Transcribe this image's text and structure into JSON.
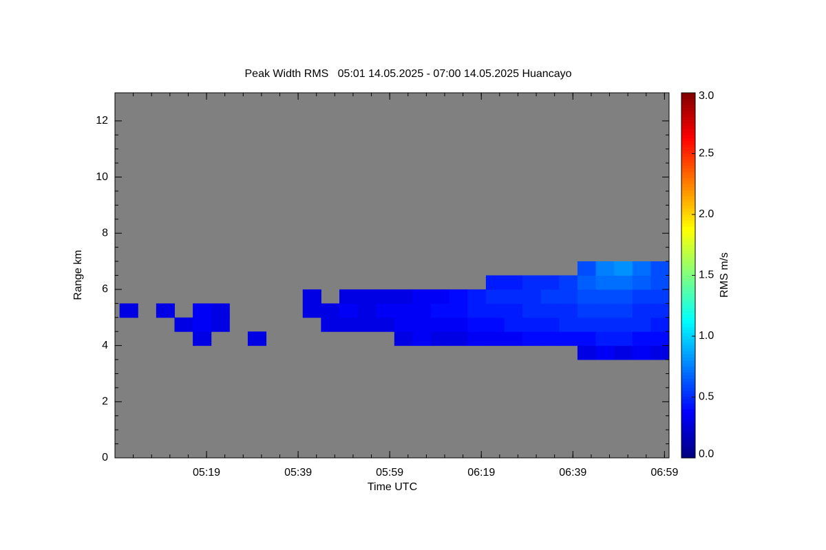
{
  "chart_data": {
    "type": "heatmap",
    "title": "Peak Width RMS   05:01 14.05.2025 - 07:00 14.05.2025 Huancayo",
    "xlabel": "Time UTC",
    "ylabel": "Range km",
    "colorbar_label": "RMS m/s",
    "colormap": "jet",
    "background": "#808080",
    "xlim": [
      "04:59",
      "07:00"
    ],
    "xticks": [
      "05:19",
      "05:39",
      "05:59",
      "06:19",
      "06:39",
      "06:59"
    ],
    "ylim": [
      0,
      13
    ],
    "yticks": [
      0,
      2,
      4,
      6,
      8,
      10,
      12
    ],
    "zlim": [
      0,
      3
    ],
    "zticks": [
      {
        "value": 0,
        "label": "0.0"
      },
      {
        "value": 0.5,
        "label": "0.5"
      },
      {
        "value": 1,
        "label": "1.0"
      },
      {
        "value": 1.5,
        "label": "1.5"
      },
      {
        "value": 2,
        "label": "2.0"
      },
      {
        "value": 2.5,
        "label": "2.5"
      },
      {
        "value": 3,
        "label": "3.0"
      }
    ],
    "xbins": [
      "05:00",
      "05:04",
      "05:08",
      "05:12",
      "05:16",
      "05:20",
      "05:24",
      "05:28",
      "05:32",
      "05:36",
      "05:40",
      "05:44",
      "05:48",
      "05:52",
      "05:56",
      "06:00",
      "06:04",
      "06:08",
      "06:12",
      "06:16",
      "06:20",
      "06:24",
      "06:28",
      "06:32",
      "06:36",
      "06:40",
      "06:44",
      "06:48",
      "06:52",
      "06:56",
      "07:00"
    ],
    "ybins": [
      3.5,
      4,
      4.5,
      5,
      5.5,
      6,
      6.5,
      7
    ],
    "z": [
      [
        null,
        null,
        null,
        null,
        null,
        null,
        null,
        null,
        null,
        null,
        null,
        null,
        null,
        null,
        null,
        null,
        null,
        null,
        null,
        null,
        null,
        null,
        null,
        null,
        null,
        0.3,
        0.35,
        0.3,
        0.35,
        0.3
      ],
      [
        null,
        null,
        null,
        null,
        0.3,
        null,
        null,
        0.3,
        null,
        null,
        null,
        null,
        null,
        null,
        null,
        0.3,
        0.35,
        0.3,
        0.3,
        0.35,
        0.35,
        0.35,
        0.4,
        0.4,
        0.4,
        0.4,
        0.45,
        0.45,
        0.4,
        0.4
      ],
      [
        null,
        null,
        null,
        0.3,
        0.35,
        0.3,
        null,
        null,
        null,
        null,
        null,
        0.3,
        0.3,
        0.3,
        0.3,
        0.35,
        0.35,
        0.35,
        0.35,
        0.4,
        0.4,
        0.45,
        0.45,
        0.45,
        0.5,
        0.5,
        0.5,
        0.5,
        0.5,
        0.45
      ],
      [
        0.3,
        null,
        0.3,
        null,
        0.35,
        0.3,
        null,
        null,
        null,
        null,
        0.3,
        0.3,
        0.35,
        0.3,
        0.35,
        0.35,
        0.35,
        0.4,
        0.4,
        0.45,
        0.45,
        0.45,
        0.5,
        0.5,
        0.5,
        0.55,
        0.55,
        0.55,
        0.5,
        0.5
      ],
      [
        null,
        null,
        null,
        null,
        null,
        null,
        null,
        null,
        null,
        null,
        0.3,
        null,
        0.3,
        0.3,
        0.3,
        0.3,
        0.35,
        0.35,
        0.4,
        0.45,
        0.5,
        0.5,
        0.5,
        0.55,
        0.55,
        0.6,
        0.6,
        0.6,
        0.55,
        0.55
      ],
      [
        null,
        null,
        null,
        null,
        null,
        null,
        null,
        null,
        null,
        null,
        null,
        null,
        null,
        null,
        null,
        null,
        null,
        null,
        null,
        null,
        0.45,
        0.45,
        0.5,
        0.5,
        0.55,
        0.65,
        0.7,
        0.7,
        0.65,
        0.6
      ],
      [
        null,
        null,
        null,
        null,
        null,
        null,
        null,
        null,
        null,
        null,
        null,
        null,
        null,
        null,
        null,
        null,
        null,
        null,
        null,
        null,
        null,
        null,
        null,
        null,
        null,
        0.6,
        0.75,
        0.8,
        0.7,
        0.6
      ]
    ]
  }
}
